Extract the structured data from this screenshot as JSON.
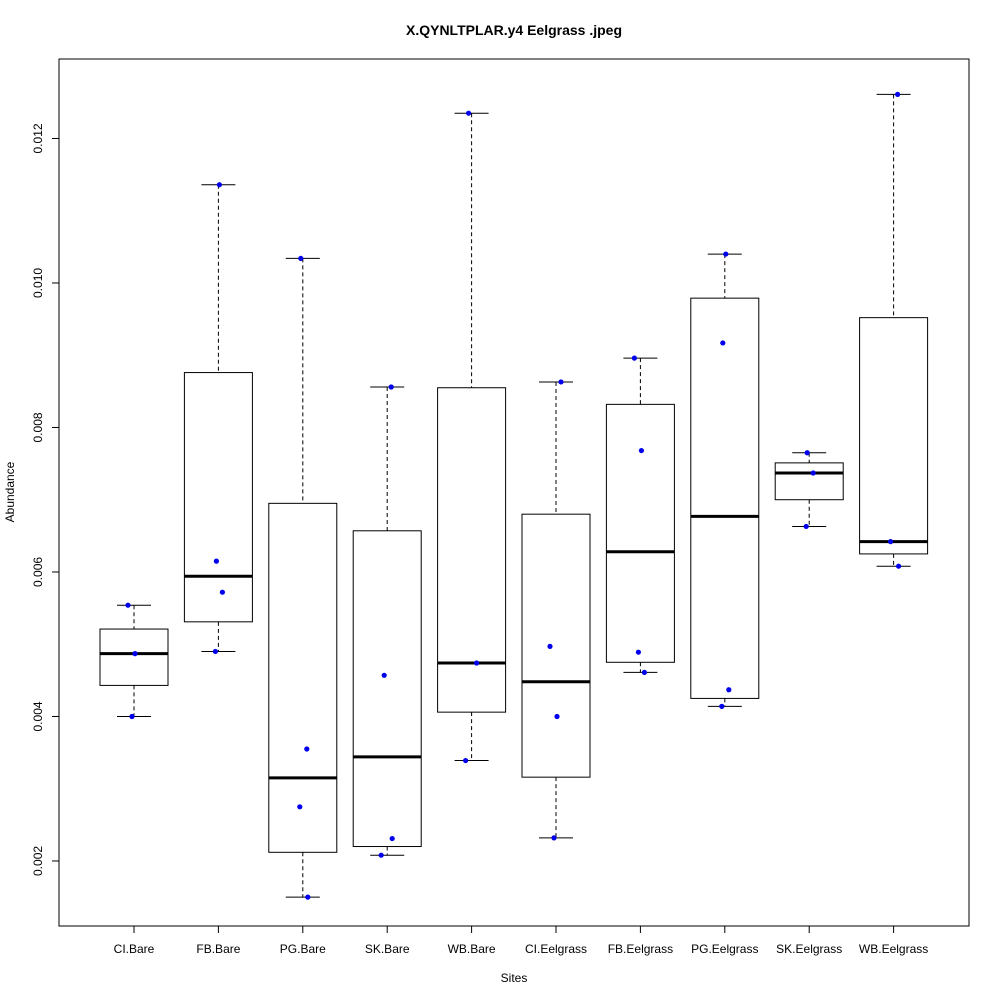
{
  "chart_data": {
    "type": "boxplot",
    "title": "X.QYNLTPLAR.y4 Eelgrass .jpeg",
    "xlabel": "Sites",
    "ylabel": "Abundance",
    "ylim": [
      0.0011,
      0.0131
    ],
    "y_ticks": [
      0.002,
      0.004,
      0.006,
      0.008,
      0.01,
      0.012
    ],
    "y_tick_labels": [
      "0.002",
      "0.004",
      "0.006",
      "0.008",
      "0.010",
      "0.012"
    ],
    "point_color": "#0000ee",
    "categories": [
      "CI.Bare",
      "FB.Bare",
      "PG.Bare",
      "SK.Bare",
      "WB.Bare",
      "CI.Eelgrass",
      "FB.Eelgrass",
      "PG.Eelgrass",
      "SK.Eelgrass",
      "WB.Eelgrass"
    ],
    "boxes": [
      {
        "min": 0.004,
        "q1": 0.00443,
        "median": 0.00487,
        "q3": 0.00521,
        "max": 0.00554
      },
      {
        "min": 0.0049,
        "q1": 0.00531,
        "median": 0.00594,
        "q3": 0.00876,
        "max": 0.01136
      },
      {
        "min": 0.0015,
        "q1": 0.00212,
        "median": 0.00315,
        "q3": 0.00695,
        "max": 0.01034
      },
      {
        "min": 0.00208,
        "q1": 0.0022,
        "median": 0.00344,
        "q3": 0.00657,
        "max": 0.00856
      },
      {
        "min": 0.00339,
        "q1": 0.00406,
        "median": 0.00474,
        "q3": 0.00855,
        "max": 0.01235
      },
      {
        "min": 0.00232,
        "q1": 0.00316,
        "median": 0.00448,
        "q3": 0.0068,
        "max": 0.00863
      },
      {
        "min": 0.00461,
        "q1": 0.00475,
        "median": 0.00628,
        "q3": 0.00832,
        "max": 0.00896
      },
      {
        "min": 0.00414,
        "q1": 0.00425,
        "median": 0.00677,
        "q3": 0.00979,
        "max": 0.0104
      },
      {
        "min": 0.00663,
        "q1": 0.007,
        "median": 0.00737,
        "q3": 0.00751,
        "max": 0.00765
      },
      {
        "min": 0.00608,
        "q1": 0.00625,
        "median": 0.00642,
        "q3": 0.00952,
        "max": 0.01261
      }
    ],
    "points": [
      {
        "category": "CI.Bare",
        "values": [
          0.00554,
          0.00487,
          0.004
        ]
      },
      {
        "category": "FB.Bare",
        "values": [
          0.01136,
          0.00615,
          0.00572,
          0.0049
        ]
      },
      {
        "category": "PG.Bare",
        "values": [
          0.01034,
          0.00355,
          0.00275,
          0.0015
        ]
      },
      {
        "category": "SK.Bare",
        "values": [
          0.00856,
          0.00457,
          0.00231,
          0.00208
        ]
      },
      {
        "category": "WB.Bare",
        "values": [
          0.01235,
          0.00474,
          0.00339
        ]
      },
      {
        "category": "CI.Eelgrass",
        "values": [
          0.00863,
          0.00497,
          0.004,
          0.00232
        ]
      },
      {
        "category": "FB.Eelgrass",
        "values": [
          0.00896,
          0.00768,
          0.00489,
          0.00461
        ]
      },
      {
        "category": "PG.Eelgrass",
        "values": [
          0.0104,
          0.00917,
          0.00437,
          0.00414
        ]
      },
      {
        "category": "SK.Eelgrass",
        "values": [
          0.00765,
          0.00737,
          0.00663
        ]
      },
      {
        "category": "WB.Eelgrass",
        "values": [
          0.01261,
          0.00642,
          0.00608
        ]
      }
    ]
  }
}
